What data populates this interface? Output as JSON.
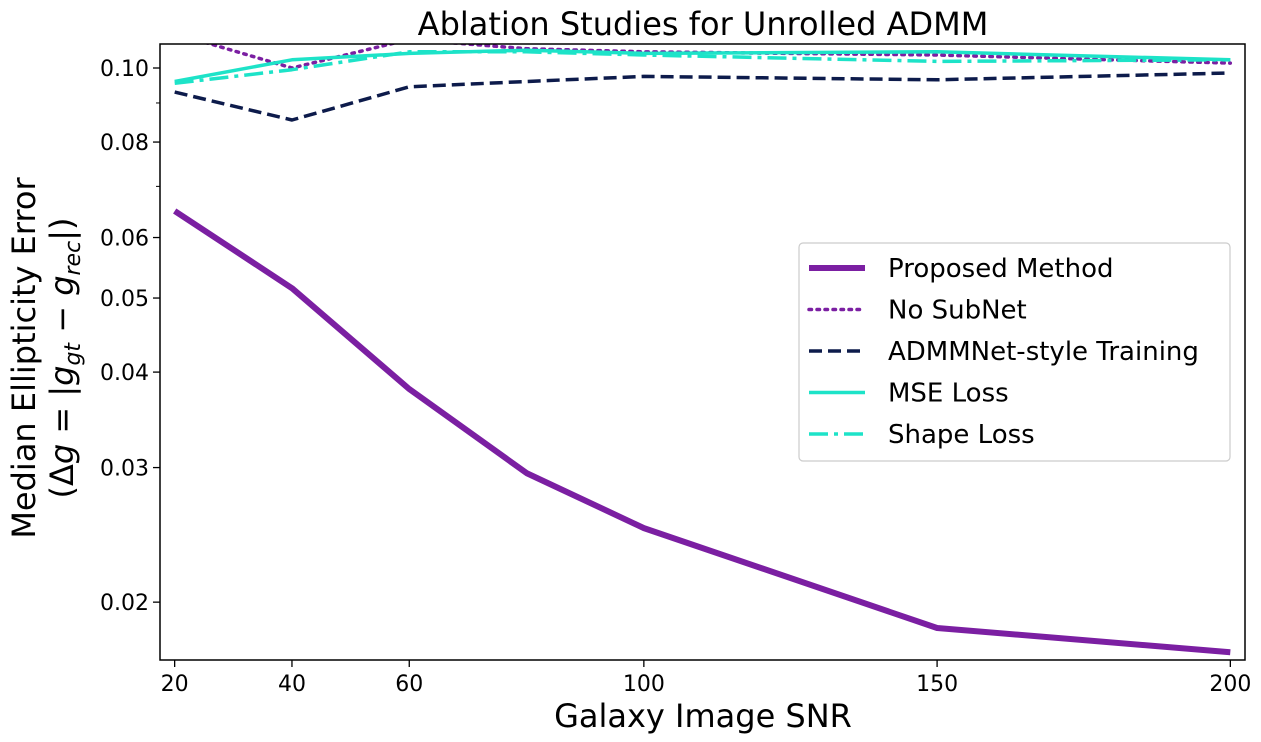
{
  "chart_data": {
    "type": "line",
    "title": "Ablation Studies for Unrolled ADMM",
    "xlabel": "Galaxy Image SNR",
    "ylabel_line1": "Median Ellipticity Error",
    "ylabel_line2": "(Δg = |g_gt − g_rec|)",
    "ylabel_parts": {
      "open": "(",
      "delta": "Δ",
      "g1": "g",
      "eq": " = |",
      "g2": "g",
      "sub1": "gt",
      "minus": " − ",
      "g3": "g",
      "sub2": "rec",
      "close": "|)"
    },
    "xscale": "linear",
    "yscale": "log",
    "xlim": [
      17.5,
      202.5
    ],
    "ylim": [
      0.0168,
      0.1075
    ],
    "xticks": [
      20,
      40,
      60,
      100,
      150,
      200
    ],
    "xtick_labels": [
      "20",
      "40",
      "60",
      "100",
      "150",
      "200"
    ],
    "yticks": [
      0.02,
      0.03,
      0.04,
      0.05,
      0.06,
      0.08,
      0.1
    ],
    "ytick_labels": [
      "0.02",
      "0.03",
      "0.04",
      "0.05",
      "0.06",
      "0.08",
      "0.10"
    ],
    "minor_yticks": [
      0.07,
      0.09
    ],
    "grid": false,
    "legend_position": "center-right",
    "x": [
      20,
      40,
      60,
      80,
      100,
      150,
      200
    ],
    "series": [
      {
        "name": "Proposed Method",
        "color": "#7b1fa2",
        "style": "solid",
        "width": 6,
        "values": [
          0.065,
          0.0515,
          0.038,
          0.0295,
          0.025,
          0.0185,
          0.0172
        ]
      },
      {
        "name": "No SubNet",
        "color": "#7b1fa2",
        "style": "dotted",
        "width": 3.5,
        "values": [
          0.111,
          0.1,
          0.109,
          0.106,
          0.105,
          0.104,
          0.1015
        ]
      },
      {
        "name": "ADMMNet-style Training",
        "color": "#0d1b4b",
        "style": "dashed",
        "width": 3.5,
        "values": [
          0.093,
          0.0855,
          0.0945,
          0.096,
          0.0975,
          0.0965,
          0.0985
        ]
      },
      {
        "name": "MSE Loss",
        "color": "#1de3c8",
        "style": "solid",
        "width": 3.5,
        "values": [
          0.096,
          0.1025,
          0.1045,
          0.1055,
          0.1045,
          0.105,
          0.1025
        ]
      },
      {
        "name": "Shape Loss",
        "color": "#1de3c8",
        "style": "dashdot",
        "width": 3.5,
        "values": [
          0.0955,
          0.0995,
          0.105,
          0.105,
          0.104,
          0.102,
          0.1025
        ]
      }
    ]
  }
}
